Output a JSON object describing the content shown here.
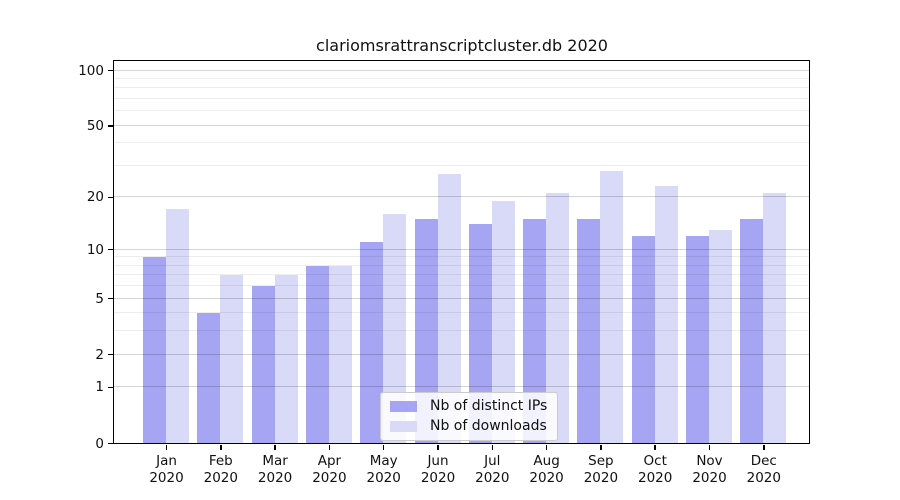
{
  "chart_data": {
    "type": "bar",
    "title": "clariomsrattranscriptcluster.db 2020",
    "categories": [
      "Jan",
      "Feb",
      "Mar",
      "Apr",
      "May",
      "Jun",
      "Jul",
      "Aug",
      "Sep",
      "Oct",
      "Nov",
      "Dec"
    ],
    "category_year": "2020",
    "series": [
      {
        "name": "Nb of distinct IPs",
        "color": "#a5a5f3",
        "values": [
          9,
          4,
          6,
          8,
          11,
          15,
          14,
          15,
          15,
          12,
          12,
          15
        ]
      },
      {
        "name": "Nb of downloads",
        "color": "#d9d9f8",
        "values": [
          17,
          7,
          7,
          8,
          16,
          27,
          19,
          21,
          28,
          23,
          13,
          21
        ]
      }
    ],
    "xlabel": "",
    "ylabel": "",
    "y_axis": {
      "scale": "log1p",
      "ticks": [
        100,
        50,
        20,
        10,
        5,
        2,
        1,
        0
      ],
      "major_gridlines": [
        1,
        2,
        5,
        10,
        20,
        50,
        100
      ],
      "minor_gridlines": [
        3,
        4,
        6,
        7,
        8,
        9,
        30,
        40,
        60,
        70,
        80,
        90
      ],
      "top_value": 112,
      "ylim": [
        0,
        112
      ]
    },
    "legend": {
      "position": "lower center",
      "entries": [
        "Nb of distinct IPs",
        "Nb of downloads"
      ]
    },
    "grid": "major+minor, drawn above bars"
  }
}
